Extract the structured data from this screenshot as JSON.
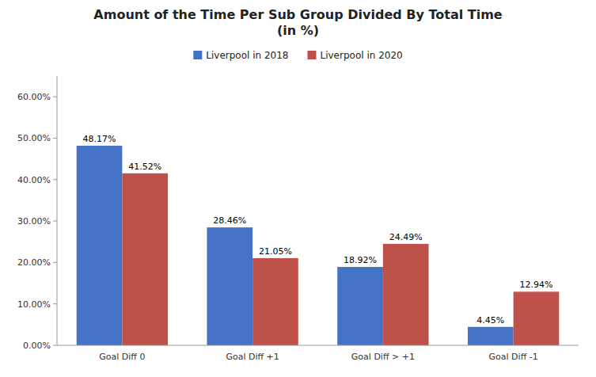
{
  "chart_data": {
    "type": "bar",
    "title": "Amount of the Time Per Sub Group Divided By Total Time\n(in %)",
    "categories": [
      "Goal Diff 0",
      "Goal Diff +1",
      "Goal Diff > +1",
      "Goal Diff -1"
    ],
    "series": [
      {
        "name": "Liverpool in 2018",
        "color": "#4472C4",
        "values": [
          48.17,
          28.46,
          18.92,
          4.45
        ],
        "value_labels": [
          "48.17%",
          "28.46%",
          "18.92%",
          "4.45%"
        ]
      },
      {
        "name": "Liverpool in 2020",
        "color": "#BE514A",
        "values": [
          41.52,
          21.05,
          24.49,
          12.94
        ],
        "value_labels": [
          "41.52%",
          "21.05%",
          "24.49%",
          "12.94%"
        ]
      }
    ],
    "ylim": [
      0,
      65
    ],
    "yticks": [
      {
        "value": 0,
        "label": "0.00%"
      },
      {
        "value": 10,
        "label": "10.00%"
      },
      {
        "value": 20,
        "label": "20.00%"
      },
      {
        "value": 30,
        "label": "30.00%"
      },
      {
        "value": 40,
        "label": "40.00%"
      },
      {
        "value": 50,
        "label": "50.00%"
      },
      {
        "value": 60,
        "label": "60.00%"
      }
    ],
    "grid": false,
    "legend": "top",
    "data_labels": true
  }
}
